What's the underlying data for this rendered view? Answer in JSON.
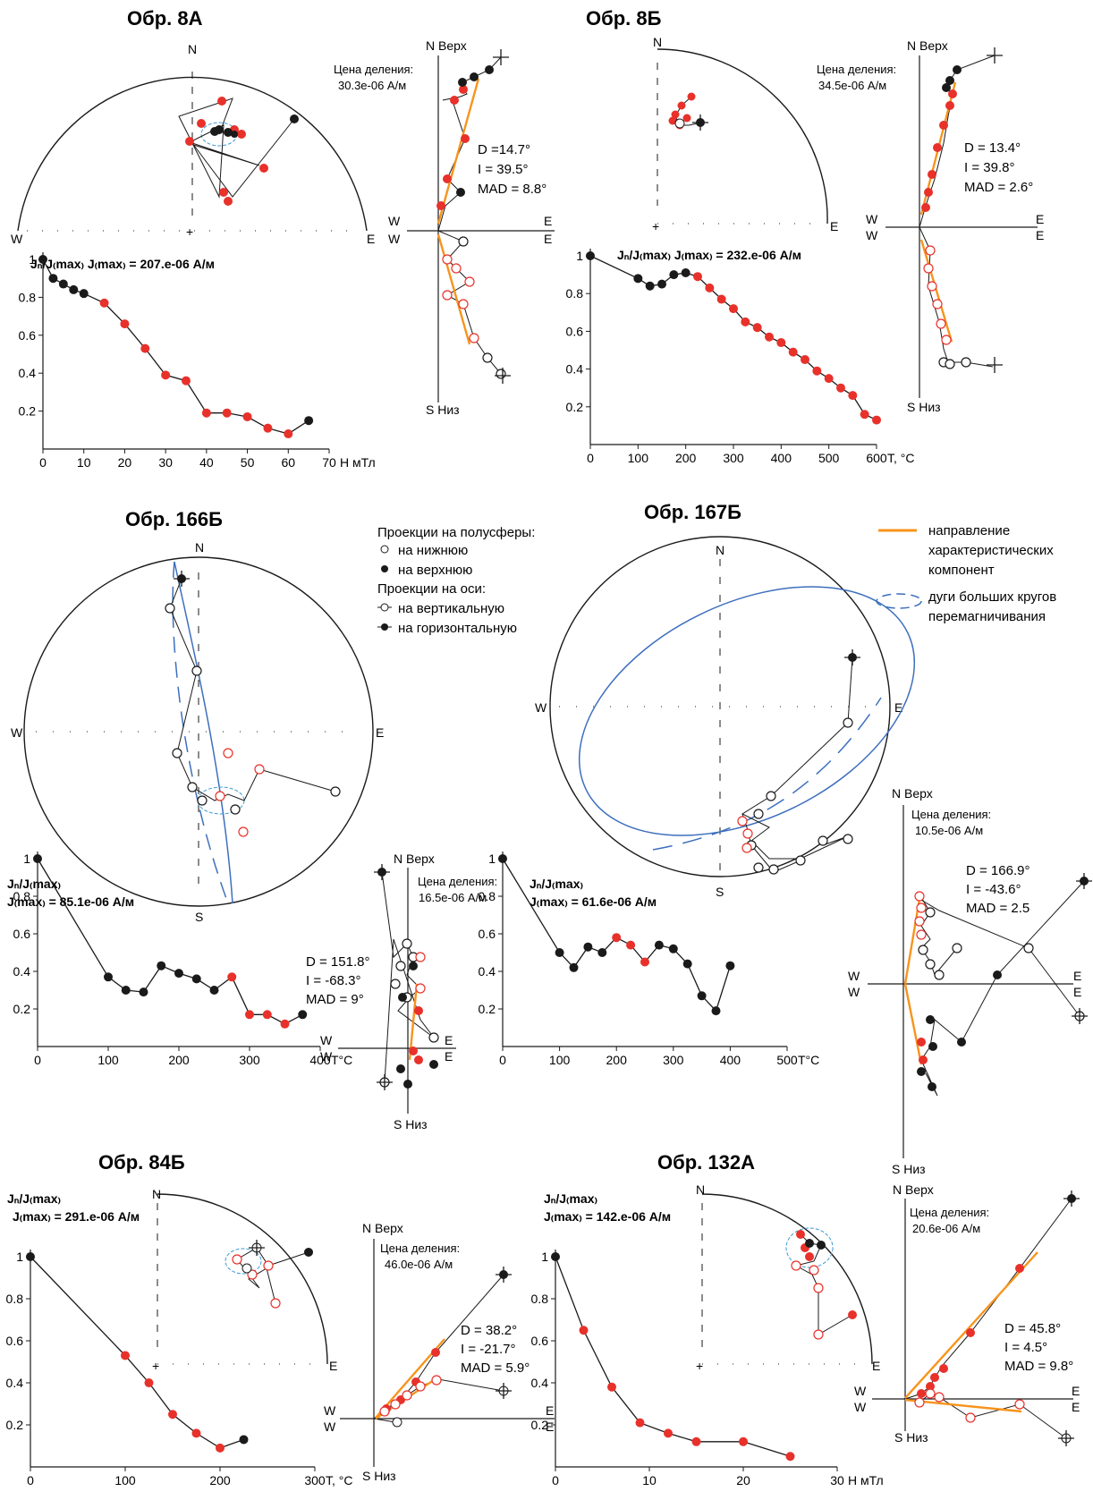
{
  "colors": {
    "red": "#e8312a",
    "orange": "#f7941d",
    "blue": "#3d6fbd",
    "black": "#1a1a1a"
  },
  "legend": {
    "hemi_title": "Проекции на полусферы:",
    "lower": "на нижнюю",
    "upper": "на верхнюю",
    "axes_title": "Проекции на оси:",
    "vertical": "на вертикальную",
    "horizontal": "на горизонтальную",
    "orange_line_1": "направление",
    "orange_line_2": "характеристических",
    "orange_line_3": "компонент",
    "blue_line_1": "дуги больших кругов",
    "blue_line_2": "перемагничивания"
  },
  "common": {
    "N": "N",
    "S": "S",
    "E": "E",
    "W": "W",
    "verh": "N Верх",
    "niz": "S Низ",
    "scale_label": "Цена деления:"
  },
  "samples": [
    {
      "title": "Обр. 8А",
      "scale_value": "30.3e-06 А/м",
      "D": "D =14.7°",
      "I": "I = 39.5°",
      "MAD": "MAD = 8.8°",
      "jlabel": "Jₙ/J₍max₎ J₍max₎ = 207.e-06  А/м",
      "xunit": "Н мТл"
    },
    {
      "title": "Обр. 8Б",
      "scale_value": "34.5e-06 А/м",
      "D": "D = 13.4°",
      "I": "I = 39.8°",
      "MAD": "MAD = 2.6°",
      "jlabel": "Jₙ/J₍max₎ J₍max₎ = 232.e-06  А/м",
      "xunit": "T, °C"
    },
    {
      "title": "Обр. 166Б",
      "scale_value": "16.5e-06 А/м",
      "D": "D = 151.8°",
      "I": "I = -68.3°",
      "MAD": "MAD = 9°",
      "jlabel1": "Jₙ/J₍max₎",
      "jlabel2": "J₍max₎ = 85.1e-06  А/м",
      "xunit": "T°C"
    },
    {
      "title": "Обр. 167Б",
      "scale_value": "10.5e-06 А/м",
      "D": "D = 166.9°",
      "I": "I = -43.6°",
      "MAD": "MAD = 2.5",
      "jlabel1": "Jₙ/J₍max₎",
      "jlabel2": "J₍max₎ = 61.6e-06  А/м",
      "xunit": "T°C"
    },
    {
      "title": "Обр. 84Б",
      "scale_value": "46.0e-06 А/м",
      "D": "D = 38.2°",
      "I": "I = -21.7°",
      "MAD": "MAD = 5.9°",
      "jlabel1": "Jₙ/J₍max₎",
      "jlabel2": "J₍max₎ = 291.e-06  А/м",
      "xunit": "T, °C"
    },
    {
      "title": "Обр. 132А",
      "scale_value": "20.6e-06 А/м",
      "D": "D = 45.8°",
      "I": "I = 4.5°",
      "MAD": "MAD = 9.8°",
      "jlabel1": "Jₙ/J₍max₎",
      "jlabel2": "J₍max₎ = 142.e-06  А/м",
      "xunit": "Н мТл"
    }
  ],
  "chart_data": [
    {
      "type": "line",
      "sample": "Обр. 8А",
      "xlabel": "Н мТл",
      "ylabel": "Jn/J(max)",
      "xlim": [
        0,
        70
      ],
      "ylim": [
        0,
        1
      ],
      "xticks": [
        0,
        10,
        20,
        30,
        40,
        50,
        60,
        70
      ],
      "yticks": [
        0.2,
        0.4,
        0.6,
        0.8,
        1
      ],
      "points": [
        [
          0,
          1.0,
          "black"
        ],
        [
          2.5,
          0.9,
          "black"
        ],
        [
          5,
          0.87,
          "black"
        ],
        [
          7.5,
          0.84,
          "black"
        ],
        [
          10,
          0.82,
          "black"
        ],
        [
          15,
          0.77,
          "red"
        ],
        [
          20,
          0.66,
          "red"
        ],
        [
          25,
          0.53,
          "red"
        ],
        [
          30,
          0.39,
          "red"
        ],
        [
          35,
          0.36,
          "red"
        ],
        [
          40,
          0.19,
          "red"
        ],
        [
          45,
          0.19,
          "red"
        ],
        [
          50,
          0.17,
          "red"
        ],
        [
          55,
          0.11,
          "red"
        ],
        [
          60,
          0.08,
          "red"
        ],
        [
          65,
          0.15,
          "black"
        ]
      ]
    },
    {
      "type": "line",
      "sample": "Обр. 8Б",
      "xlabel": "T, °C",
      "ylabel": "Jn/J(max)",
      "xlim": [
        0,
        600
      ],
      "ylim": [
        0,
        1
      ],
      "xticks": [
        0,
        100,
        200,
        300,
        400,
        500,
        600
      ],
      "yticks": [
        0.2,
        0.4,
        0.6,
        0.8,
        1
      ],
      "points": [
        [
          0,
          1.0,
          "black"
        ],
        [
          100,
          0.88,
          "black"
        ],
        [
          125,
          0.84,
          "black"
        ],
        [
          150,
          0.85,
          "black"
        ],
        [
          175,
          0.9,
          "black"
        ],
        [
          200,
          0.91,
          "black"
        ],
        [
          225,
          0.89,
          "red"
        ],
        [
          250,
          0.83,
          "red"
        ],
        [
          275,
          0.77,
          "red"
        ],
        [
          300,
          0.72,
          "red"
        ],
        [
          325,
          0.65,
          "red"
        ],
        [
          350,
          0.62,
          "red"
        ],
        [
          375,
          0.57,
          "red"
        ],
        [
          400,
          0.54,
          "red"
        ],
        [
          425,
          0.49,
          "red"
        ],
        [
          450,
          0.45,
          "red"
        ],
        [
          475,
          0.39,
          "red"
        ],
        [
          500,
          0.35,
          "red"
        ],
        [
          525,
          0.3,
          "red"
        ],
        [
          550,
          0.26,
          "red"
        ],
        [
          575,
          0.16,
          "red"
        ],
        [
          600,
          0.13,
          "red"
        ]
      ]
    },
    {
      "type": "line",
      "sample": "Обр. 166Б",
      "xlabel": "T°C",
      "ylabel": "Jn/J(max)",
      "xlim": [
        0,
        400
      ],
      "ylim": [
        0,
        1
      ],
      "xticks": [
        0,
        100,
        200,
        300,
        400
      ],
      "yticks": [
        0.2,
        0.4,
        0.6,
        0.8,
        1
      ],
      "points": [
        [
          0,
          1.0,
          "black"
        ],
        [
          100,
          0.37,
          "black"
        ],
        [
          125,
          0.3,
          "black"
        ],
        [
          150,
          0.29,
          "black"
        ],
        [
          175,
          0.43,
          "black"
        ],
        [
          200,
          0.39,
          "black"
        ],
        [
          225,
          0.36,
          "black"
        ],
        [
          250,
          0.3,
          "black"
        ],
        [
          275,
          0.37,
          "red"
        ],
        [
          300,
          0.17,
          "red"
        ],
        [
          325,
          0.17,
          "red"
        ],
        [
          350,
          0.12,
          "red"
        ],
        [
          375,
          0.17,
          "black"
        ]
      ]
    },
    {
      "type": "line",
      "sample": "Обр. 167Б",
      "xlabel": "T°C",
      "ylabel": "Jn/J(max)",
      "xlim": [
        0,
        500
      ],
      "ylim": [
        0,
        1
      ],
      "xticks": [
        0,
        100,
        200,
        300,
        400,
        500
      ],
      "yticks": [
        0.2,
        0.4,
        0.6,
        0.8,
        1
      ],
      "points": [
        [
          0,
          1.0,
          "black"
        ],
        [
          100,
          0.5,
          "black"
        ],
        [
          125,
          0.42,
          "black"
        ],
        [
          150,
          0.53,
          "black"
        ],
        [
          175,
          0.5,
          "black"
        ],
        [
          200,
          0.58,
          "red"
        ],
        [
          225,
          0.54,
          "red"
        ],
        [
          250,
          0.45,
          "red"
        ],
        [
          275,
          0.54,
          "black"
        ],
        [
          300,
          0.52,
          "black"
        ],
        [
          325,
          0.44,
          "black"
        ],
        [
          350,
          0.27,
          "black"
        ],
        [
          375,
          0.19,
          "black"
        ],
        [
          400,
          0.43,
          "black"
        ]
      ]
    },
    {
      "type": "line",
      "sample": "Обр. 84Б",
      "xlabel": "T, °C",
      "ylabel": "Jn/J(max)",
      "xlim": [
        0,
        300
      ],
      "ylim": [
        0,
        1
      ],
      "xticks": [
        0,
        100,
        200,
        300
      ],
      "yticks": [
        0.2,
        0.4,
        0.6,
        0.8,
        1
      ],
      "points": [
        [
          0,
          1.0,
          "black"
        ],
        [
          100,
          0.53,
          "red"
        ],
        [
          125,
          0.4,
          "red"
        ],
        [
          150,
          0.25,
          "red"
        ],
        [
          175,
          0.16,
          "red"
        ],
        [
          200,
          0.09,
          "red"
        ],
        [
          225,
          0.13,
          "black"
        ]
      ]
    },
    {
      "type": "line",
      "sample": "Обр. 132А",
      "xlabel": "Н мТл",
      "ylabel": "Jn/J(max)",
      "xlim": [
        0,
        30
      ],
      "ylim": [
        0,
        1
      ],
      "xticks": [
        0,
        10,
        20,
        30
      ],
      "yticks": [
        0.2,
        0.4,
        0.6,
        0.8,
        1
      ],
      "points": [
        [
          0,
          1.0,
          "black"
        ],
        [
          3,
          0.65,
          "red"
        ],
        [
          6,
          0.38,
          "red"
        ],
        [
          9,
          0.21,
          "red"
        ],
        [
          12,
          0.16,
          "red"
        ],
        [
          15,
          0.12,
          "red"
        ],
        [
          20,
          0.12,
          "red"
        ],
        [
          25,
          0.05,
          "red"
        ]
      ]
    }
  ]
}
